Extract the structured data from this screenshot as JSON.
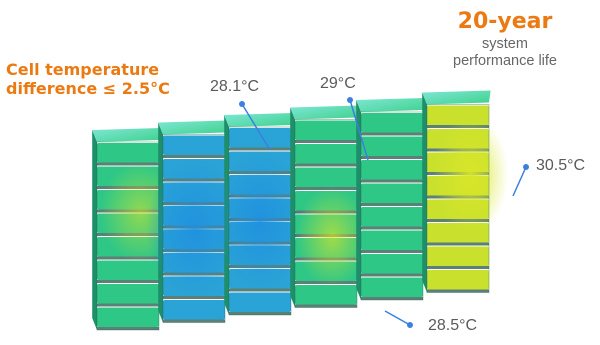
{
  "headline": {
    "line1": "Cell temperature",
    "line2": "difference ≤ 2.5°C"
  },
  "life": {
    "years": "20-year",
    "caption_line1": "system",
    "caption_line2": "performance life"
  },
  "temperature_labels": [
    {
      "text": "28.1°C"
    },
    {
      "text": "29°C"
    },
    {
      "text": "30.5°C"
    },
    {
      "text": "28.5°C"
    }
  ],
  "colors": {
    "accent": "#ec7a12",
    "callout": "#3b7fe0",
    "label_text": "#5a5a5a",
    "module_cool": "#2aa3d6",
    "module_mid": "#2fc786",
    "module_warm": "#c9e12c"
  },
  "pack": {
    "module_count": 6,
    "cells_per_module": 8
  }
}
